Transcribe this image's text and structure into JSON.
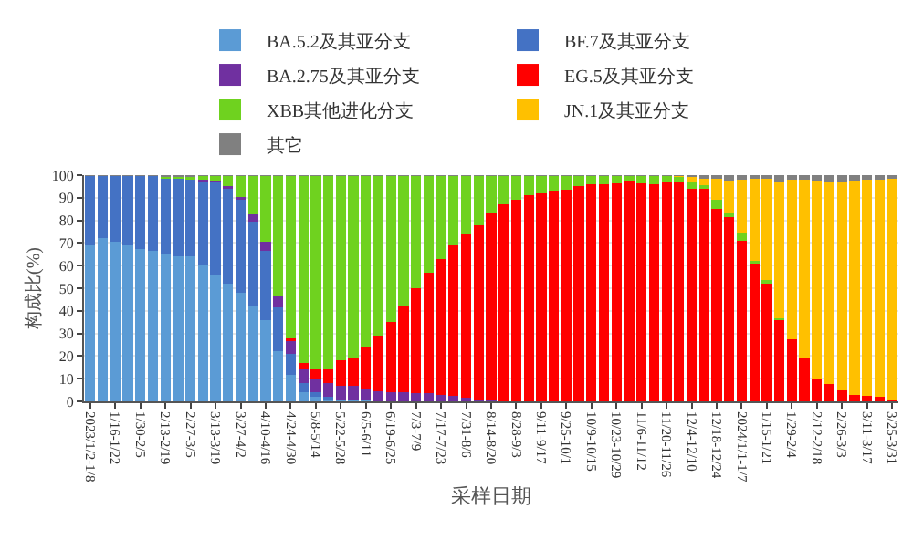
{
  "chart_data": {
    "type": "bar",
    "stacked": true,
    "xlabel": "采样日期",
    "ylabel": "构成比(%)",
    "categories": [
      "2023/1/2-1/8",
      null,
      "1/16-1/22",
      null,
      "1/30-2/5",
      null,
      "2/13-2/19",
      null,
      "2/27-3/5",
      null,
      "3/13-3/19",
      null,
      "3/27-4/2",
      null,
      "4/10-4/16",
      null,
      "4/24-4/30",
      null,
      "5/8-5/14",
      null,
      "5/22-5/28",
      null,
      "6/5-6/11",
      null,
      "6/19-6/25",
      null,
      "7/3-7/9",
      null,
      "7/17-7/23",
      null,
      "7/31-8/6",
      null,
      "8/14-8/20",
      null,
      "8/28-9/3",
      null,
      "9/11-9/17",
      null,
      "9/25-10/1",
      null,
      "10/9-10/15",
      null,
      "10/23-10/29",
      null,
      "11/6-11/12",
      null,
      "11/20-11/26",
      null,
      "12/4-12/10",
      null,
      "12/18-12/24",
      null,
      "2024/1/1-1/7",
      null,
      "1/15-1/21",
      null,
      "1/29-2/4",
      null,
      "2/12-2/18",
      null,
      "2/26-3/3",
      null,
      "3/11-3/17",
      null,
      "3/25-3/31"
    ],
    "series": [
      {
        "name": "BA.5.2及其亚分支",
        "color": "#5b9bd5",
        "values": [
          69,
          72,
          70.5,
          69,
          67.5,
          66.5,
          65,
          64,
          64,
          60,
          56,
          52,
          48,
          42,
          36,
          22,
          11.5,
          4,
          2,
          1,
          0.5,
          0.5,
          0.5,
          0,
          0,
          0,
          0,
          0,
          0,
          0,
          0,
          0,
          0,
          0,
          0,
          0,
          0,
          0,
          0,
          0,
          0,
          0,
          0,
          0,
          0,
          0,
          0,
          0,
          0,
          0,
          0,
          0,
          0,
          0,
          0,
          0,
          0,
          0,
          0,
          0,
          0,
          0,
          0,
          0,
          0
        ]
      },
      {
        "name": "BF.7及其亚分支",
        "color": "#4472c4",
        "values": [
          30.5,
          27.5,
          29,
          30.5,
          32,
          33,
          33.5,
          34.5,
          34,
          37,
          41,
          42,
          41,
          37.5,
          30.5,
          19.5,
          9.5,
          4,
          2,
          1,
          0.5,
          0.5,
          0,
          0,
          0,
          0,
          0,
          0,
          0,
          0,
          0,
          0,
          0,
          0,
          0,
          0,
          0,
          0,
          0,
          0,
          0,
          0,
          0,
          0,
          0,
          0,
          0,
          0,
          0,
          0,
          0,
          0,
          0,
          0,
          0,
          0,
          0,
          0,
          0,
          0,
          0,
          0,
          0,
          0,
          0
        ]
      },
      {
        "name": "BA.2.75及其亚分支",
        "color": "#7030a0",
        "values": [
          0,
          0,
          0,
          0,
          0,
          0,
          0,
          0,
          0,
          1,
          0.5,
          1,
          1.5,
          3,
          4,
          5,
          5.5,
          6,
          5.5,
          6,
          6,
          6,
          5,
          4.5,
          4,
          4,
          3.5,
          3.5,
          3,
          2.5,
          1.5,
          1,
          0.5,
          0,
          0,
          0,
          0,
          0,
          0,
          0,
          0,
          0,
          0,
          0,
          0,
          0,
          0,
          0,
          0,
          0,
          0,
          0,
          0,
          0,
          0,
          0,
          0,
          0,
          0,
          0,
          0,
          0,
          0,
          0,
          0
        ]
      },
      {
        "name": "EG.5及其亚分支",
        "color": "#ff0000",
        "values": [
          0,
          0,
          0,
          0,
          0,
          0,
          0,
          0,
          0,
          0,
          0,
          0,
          0,
          0,
          0,
          0,
          1.5,
          3,
          5,
          6,
          11,
          12,
          18.5,
          24.5,
          31,
          38,
          46.5,
          53.5,
          60,
          66.5,
          72.5,
          77,
          82.5,
          87,
          89,
          91,
          92,
          93,
          93.5,
          95,
          96,
          96,
          96.5,
          97.5,
          96.5,
          96,
          97,
          97,
          94,
          94,
          85,
          81.5,
          71,
          61,
          52,
          36,
          27.5,
          19,
          10,
          7.5,
          5,
          3,
          2.5,
          2,
          1
        ]
      },
      {
        "name": "XBB其他进化分支",
        "color": "#6fd21f",
        "values": [
          0,
          0,
          0,
          0,
          0,
          0,
          0.5,
          0.5,
          1,
          1.5,
          2,
          4.5,
          9,
          17,
          29,
          53,
          71.5,
          82.5,
          85,
          85.5,
          81.5,
          80.5,
          75.5,
          70.5,
          64.5,
          57.5,
          49.5,
          42.5,
          36.5,
          30.5,
          25.5,
          21.5,
          16.5,
          12.5,
          10.5,
          8.5,
          7.5,
          6.5,
          6,
          4.5,
          3.5,
          3.5,
          3,
          2,
          3,
          3.5,
          2.5,
          2,
          3,
          1.5,
          4,
          2,
          3.5,
          1,
          1.5,
          0.5,
          0,
          0,
          0,
          0,
          0,
          0,
          0,
          0,
          0
        ]
      },
      {
        "name": "JN.1及其亚分支",
        "color": "#ffc000",
        "values": [
          0,
          0,
          0,
          0,
          0,
          0,
          0,
          0,
          0,
          0,
          0,
          0,
          0,
          0,
          0,
          0,
          0,
          0,
          0,
          0,
          0,
          0,
          0,
          0,
          0,
          0,
          0,
          0,
          0,
          0,
          0,
          0,
          0,
          0,
          0,
          0,
          0,
          0,
          0,
          0,
          0,
          0,
          0,
          0,
          0,
          0,
          0,
          0.5,
          2,
          3,
          9.5,
          14,
          23.5,
          36.5,
          45,
          60.5,
          70.5,
          79,
          87.5,
          89.5,
          92,
          94.5,
          95.5,
          96,
          97.5
        ]
      },
      {
        "name": "其它",
        "color": "#808080",
        "values": [
          0.5,
          0.5,
          0.5,
          0.5,
          0.5,
          0.5,
          1,
          1,
          1,
          0.5,
          0.5,
          0.5,
          0.5,
          0.5,
          0.5,
          0.5,
          0.5,
          0.5,
          0.5,
          0.5,
          0.5,
          0.5,
          0.5,
          0.5,
          0.5,
          0.5,
          0.5,
          0.5,
          0.5,
          0.5,
          0.5,
          0.5,
          0.5,
          0.5,
          0.5,
          0.5,
          0.5,
          0.5,
          0.5,
          0.5,
          0.5,
          0.5,
          0.5,
          0.5,
          0.5,
          0.5,
          0.5,
          0.5,
          1,
          1.5,
          1.5,
          2.5,
          2,
          1.5,
          1.5,
          3,
          2,
          2,
          2.5,
          3,
          3,
          2.5,
          2,
          2,
          1.5
        ]
      }
    ],
    "ylim": [
      0,
      100
    ],
    "yticks": [
      0,
      10,
      20,
      30,
      40,
      50,
      60,
      70,
      80,
      90,
      100
    ],
    "grid": "y",
    "legend": "top"
  }
}
